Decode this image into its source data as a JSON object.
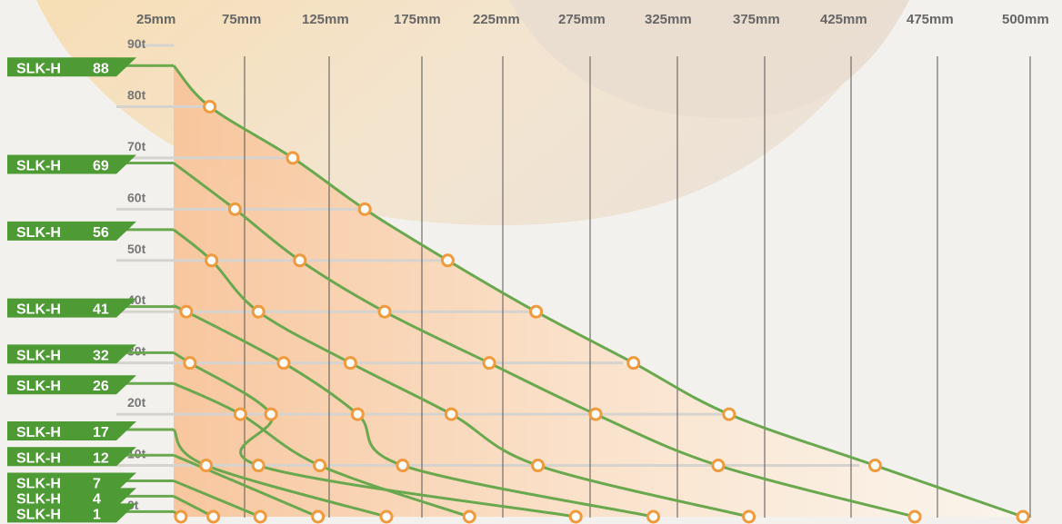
{
  "colors": {
    "accent_green": "#6aa84f",
    "marker_orange": "#f09a3e",
    "fill_orange": "#f8c49a",
    "label_green": "#4e9a35"
  },
  "chart_data": {
    "type": "line",
    "title": "",
    "xlabel": "",
    "ylabel": "",
    "x_tick_labels": [
      "25mm",
      "75mm",
      "125mm",
      "175mm",
      "225mm",
      "275mm",
      "325mm",
      "375mm",
      "425mm",
      "475mm",
      "500mm"
    ],
    "y_tick_labels": [
      "90t",
      "80t",
      "70t",
      "60t",
      "50t",
      "40t",
      "30t",
      "20t",
      "10t",
      "0t"
    ],
    "ylim": [
      0,
      90
    ],
    "xlim": [
      25,
      500
    ],
    "grid": true,
    "series": [
      {
        "name": "SLK-H 88",
        "points": [
          [
            25,
            88
          ],
          [
            45,
            80
          ],
          [
            91,
            70
          ],
          [
            131,
            60
          ],
          [
            177,
            50
          ],
          [
            226,
            40
          ],
          [
            280,
            30
          ],
          [
            333,
            20
          ],
          [
            414,
            10
          ],
          [
            496,
            0
          ]
        ]
      },
      {
        "name": "SLK-H 69",
        "points": [
          [
            25,
            69
          ],
          [
            59,
            60
          ],
          [
            95,
            50
          ],
          [
            142,
            40
          ],
          [
            200,
            30
          ],
          [
            259,
            20
          ],
          [
            327,
            10
          ],
          [
            436,
            0
          ]
        ]
      },
      {
        "name": "SLK-H 56",
        "points": [
          [
            25,
            56
          ],
          [
            46,
            50
          ],
          [
            72,
            40
          ],
          [
            123,
            30
          ],
          [
            179,
            20
          ],
          [
            227,
            10
          ],
          [
            344,
            0
          ]
        ]
      },
      {
        "name": "SLK-H 41",
        "points": [
          [
            25,
            41
          ],
          [
            32,
            40
          ],
          [
            86,
            30
          ],
          [
            127,
            20
          ],
          [
            152,
            10
          ],
          [
            291,
            0
          ]
        ]
      },
      {
        "name": "SLK-H 32",
        "points": [
          [
            25,
            32
          ],
          [
            34,
            30
          ],
          [
            79,
            20
          ],
          [
            72,
            10
          ],
          [
            248,
            0
          ]
        ]
      },
      {
        "name": "SLK-H 26",
        "points": [
          [
            25,
            26
          ],
          [
            62,
            20
          ],
          [
            106,
            10
          ],
          [
            189,
            0
          ]
        ]
      },
      {
        "name": "SLK-H 17",
        "points": [
          [
            25,
            17
          ],
          [
            43,
            10
          ],
          [
            143,
            0
          ]
        ]
      },
      {
        "name": "SLK-H 12",
        "points": [
          [
            25,
            12
          ],
          [
            105,
            0
          ]
        ]
      },
      {
        "name": "SLK-H 7",
        "points": [
          [
            25,
            7
          ],
          [
            73,
            0
          ]
        ]
      },
      {
        "name": "SLK-H 4",
        "points": [
          [
            25,
            4
          ],
          [
            47,
            0
          ]
        ]
      },
      {
        "name": "SLK-H 1",
        "points": [
          [
            25,
            1
          ],
          [
            29,
            0
          ]
        ]
      }
    ]
  }
}
